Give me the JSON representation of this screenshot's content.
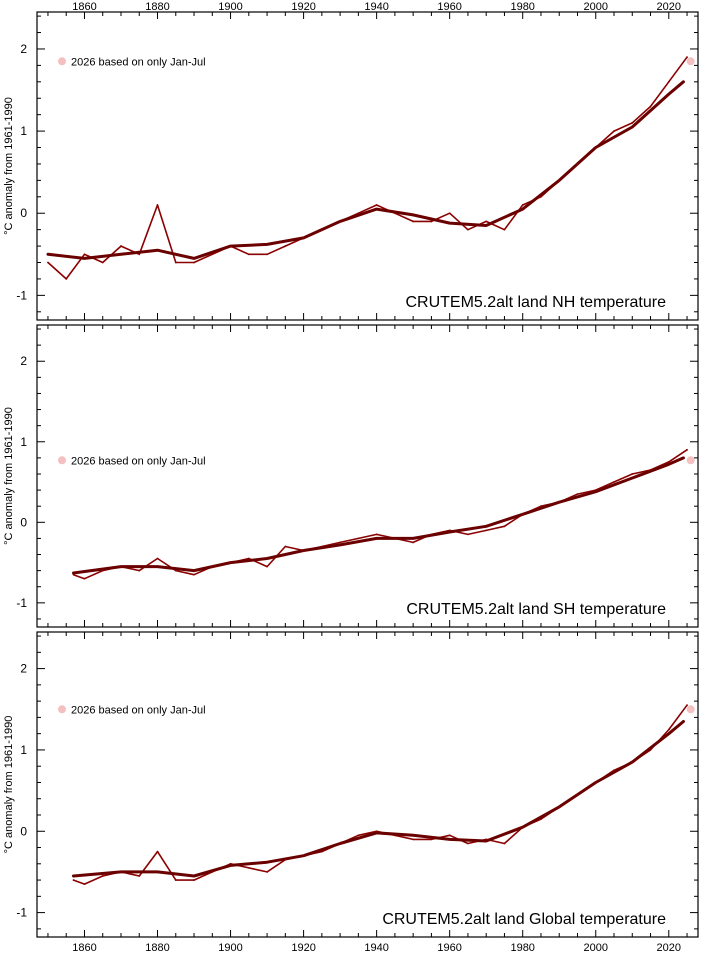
{
  "chart_data": {
    "type": "line",
    "xlim": [
      1847,
      2028
    ],
    "x_ticks": [
      "1860",
      "1880",
      "1900",
      "1920",
      "1940",
      "1960",
      "1980",
      "2000",
      "2020"
    ],
    "ylabel": "°C anomaly from 1961-1990",
    "colors": {
      "annual": "#8b0000",
      "smooth": "#6b0000",
      "partial_year": "#f4c0c0"
    },
    "panels": [
      {
        "title": "CRUTEM5.2alt land NH temperature",
        "ylim": [
          -1.3,
          2.45
        ],
        "y_ticks": [
          "-1",
          "0",
          "1",
          "2"
        ],
        "partial_note": "2026 based on only Jan-Jul",
        "partial_value": 1.85,
        "series": [
          {
            "x": [
              1850,
              1855,
              1860,
              1865,
              1870,
              1875,
              1880,
              1885,
              1890,
              1895,
              1900,
              1905,
              1910,
              1915,
              1920,
              1925,
              1930,
              1935,
              1940,
              1945,
              1950,
              1955,
              1960,
              1965,
              1970,
              1975,
              1980,
              1985,
              1990,
              1995,
              2000,
              2005,
              2010,
              2015,
              2020,
              2025
            ],
            "values": [
              -0.6,
              -0.8,
              -0.5,
              -0.6,
              -0.4,
              -0.5,
              0.1,
              -0.6,
              -0.6,
              -0.5,
              -0.4,
              -0.5,
              -0.5,
              -0.4,
              -0.3,
              -0.2,
              -0.1,
              0.0,
              0.1,
              0.0,
              -0.1,
              -0.1,
              0.0,
              -0.2,
              -0.1,
              -0.2,
              0.1,
              0.2,
              0.4,
              0.6,
              0.8,
              1.0,
              1.1,
              1.3,
              1.6,
              1.9
            ]
          },
          {
            "x": [
              1850,
              1860,
              1870,
              1880,
              1890,
              1900,
              1910,
              1920,
              1930,
              1940,
              1950,
              1960,
              1970,
              1980,
              1990,
              2000,
              2010,
              2020,
              2024
            ],
            "values": [
              -0.5,
              -0.55,
              -0.5,
              -0.45,
              -0.55,
              -0.4,
              -0.38,
              -0.3,
              -0.1,
              0.05,
              -0.02,
              -0.12,
              -0.15,
              0.05,
              0.4,
              0.8,
              1.05,
              1.45,
              1.6
            ]
          }
        ]
      },
      {
        "title": "CRUTEM5.2alt land SH temperature",
        "ylim": [
          -1.3,
          2.45
        ],
        "y_ticks": [
          "-1",
          "0",
          "1",
          "2"
        ],
        "partial_note": "2026 based on only Jan-Jul",
        "partial_value": 0.77,
        "series": [
          {
            "x": [
              1857,
              1860,
              1865,
              1870,
              1875,
              1880,
              1885,
              1890,
              1895,
              1900,
              1905,
              1910,
              1915,
              1920,
              1925,
              1930,
              1935,
              1940,
              1945,
              1950,
              1955,
              1960,
              1965,
              1970,
              1975,
              1980,
              1985,
              1990,
              1995,
              2000,
              2005,
              2010,
              2015,
              2020,
              2025
            ],
            "values": [
              -0.65,
              -0.7,
              -0.6,
              -0.55,
              -0.6,
              -0.45,
              -0.6,
              -0.65,
              -0.55,
              -0.5,
              -0.45,
              -0.55,
              -0.3,
              -0.35,
              -0.3,
              -0.25,
              -0.2,
              -0.15,
              -0.2,
              -0.25,
              -0.15,
              -0.1,
              -0.15,
              -0.1,
              -0.05,
              0.1,
              0.2,
              0.25,
              0.35,
              0.4,
              0.5,
              0.6,
              0.65,
              0.75,
              0.9
            ]
          },
          {
            "x": [
              1857,
              1870,
              1880,
              1890,
              1900,
              1910,
              1920,
              1930,
              1940,
              1950,
              1960,
              1970,
              1980,
              1990,
              2000,
              2010,
              2020,
              2024
            ],
            "values": [
              -0.63,
              -0.55,
              -0.55,
              -0.6,
              -0.5,
              -0.45,
              -0.35,
              -0.28,
              -0.2,
              -0.2,
              -0.12,
              -0.05,
              0.1,
              0.25,
              0.38,
              0.55,
              0.72,
              0.8
            ]
          }
        ]
      },
      {
        "title": "CRUTEM5.2alt land Global temperature",
        "ylim": [
          -1.3,
          2.45
        ],
        "y_ticks": [
          "-1",
          "0",
          "1",
          "2"
        ],
        "partial_note": "2026 based on only Jan-Jul",
        "partial_value": 1.5,
        "series": [
          {
            "x": [
              1857,
              1860,
              1865,
              1870,
              1875,
              1880,
              1885,
              1890,
              1895,
              1900,
              1905,
              1910,
              1915,
              1920,
              1925,
              1930,
              1935,
              1940,
              1945,
              1950,
              1955,
              1960,
              1965,
              1970,
              1975,
              1980,
              1985,
              1990,
              1995,
              2000,
              2005,
              2010,
              2015,
              2020,
              2025
            ],
            "values": [
              -0.6,
              -0.65,
              -0.55,
              -0.5,
              -0.55,
              -0.25,
              -0.6,
              -0.6,
              -0.5,
              -0.4,
              -0.45,
              -0.5,
              -0.35,
              -0.3,
              -0.25,
              -0.15,
              -0.05,
              0.0,
              -0.05,
              -0.1,
              -0.1,
              -0.05,
              -0.15,
              -0.1,
              -0.15,
              0.05,
              0.15,
              0.3,
              0.45,
              0.6,
              0.75,
              0.85,
              1.0,
              1.25,
              1.55
            ]
          },
          {
            "x": [
              1857,
              1870,
              1880,
              1890,
              1900,
              1910,
              1920,
              1930,
              1940,
              1950,
              1960,
              1970,
              1980,
              1990,
              2000,
              2010,
              2020,
              2024
            ],
            "values": [
              -0.55,
              -0.5,
              -0.5,
              -0.55,
              -0.42,
              -0.38,
              -0.3,
              -0.15,
              -0.02,
              -0.05,
              -0.1,
              -0.12,
              0.05,
              0.3,
              0.6,
              0.85,
              1.2,
              1.35
            ]
          }
        ]
      }
    ]
  }
}
